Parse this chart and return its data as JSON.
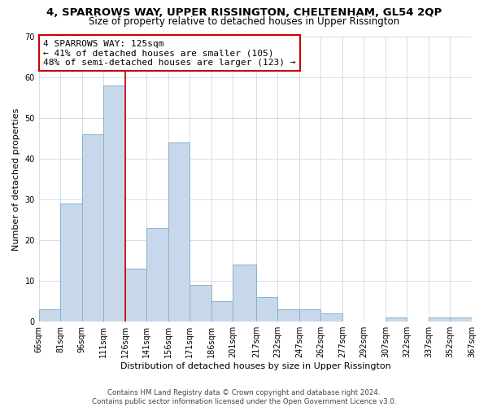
{
  "title": "4, SPARROWS WAY, UPPER RISSINGTON, CHELTENHAM, GL54 2QP",
  "subtitle": "Size of property relative to detached houses in Upper Rissington",
  "xlabel": "Distribution of detached houses by size in Upper Rissington",
  "ylabel": "Number of detached properties",
  "bar_color": "#c8d8eb",
  "bar_edge_color": "#8ab0cc",
  "vline_x": 126,
  "vline_color": "#cc0000",
  "bin_edges": [
    66,
    81,
    96,
    111,
    126,
    141,
    156,
    171,
    186,
    201,
    217,
    232,
    247,
    262,
    277,
    292,
    307,
    322,
    337,
    352,
    367
  ],
  "bin_labels": [
    "66sqm",
    "81sqm",
    "96sqm",
    "111sqm",
    "126sqm",
    "141sqm",
    "156sqm",
    "171sqm",
    "186sqm",
    "201sqm",
    "217sqm",
    "232sqm",
    "247sqm",
    "262sqm",
    "277sqm",
    "292sqm",
    "307sqm",
    "322sqm",
    "337sqm",
    "352sqm",
    "367sqm"
  ],
  "counts": [
    3,
    29,
    46,
    58,
    13,
    23,
    44,
    9,
    5,
    14,
    6,
    3,
    3,
    2,
    0,
    0,
    1,
    0,
    1,
    1
  ],
  "annotation_lines": [
    "4 SPARROWS WAY: 125sqm",
    "← 41% of detached houses are smaller (105)",
    "48% of semi-detached houses are larger (123) →"
  ],
  "annotation_box_color": "white",
  "annotation_box_edge_color": "#cc0000",
  "footer_lines": [
    "Contains HM Land Registry data © Crown copyright and database right 2024.",
    "Contains public sector information licensed under the Open Government Licence v3.0."
  ],
  "ylim": [
    0,
    70
  ],
  "yticks": [
    0,
    10,
    20,
    30,
    40,
    50,
    60,
    70
  ],
  "background_color": "#ffffff",
  "plot_background_color": "#ffffff",
  "title_fontsize": 9.5,
  "subtitle_fontsize": 8.5,
  "axis_label_fontsize": 8.0,
  "tick_fontsize": 7.0,
  "annotation_fontsize": 8.0,
  "footer_fontsize": 6.2
}
